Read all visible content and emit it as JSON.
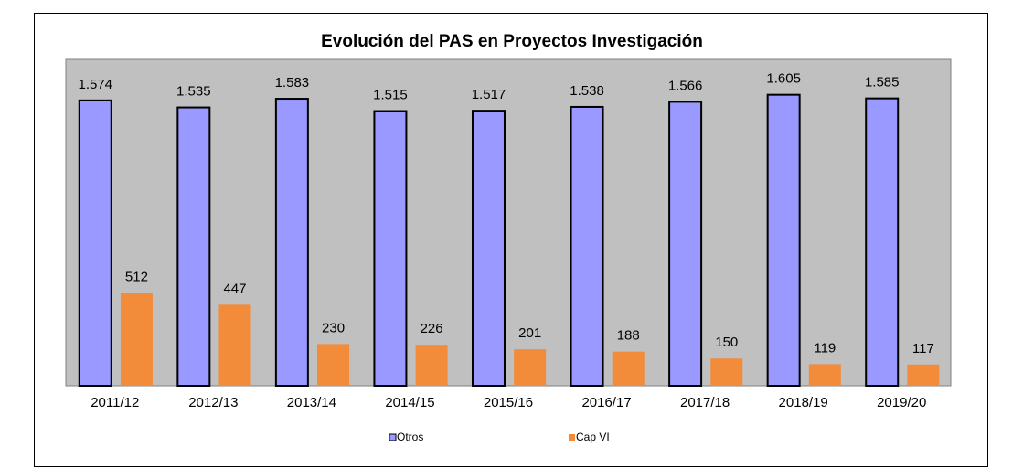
{
  "chart_data": {
    "type": "bar",
    "title": "Evolución del PAS en Proyectos Investigación",
    "categories": [
      "2011/12",
      "2012/13",
      "2013/14",
      "2014/15",
      "2015/16",
      "2016/17",
      "2017/18",
      "2018/19",
      "2019/20"
    ],
    "series": [
      {
        "name": "Otros",
        "color": "#9999ff",
        "values": [
          1574,
          1535,
          1583,
          1515,
          1517,
          1538,
          1566,
          1605,
          1585
        ],
        "value_labels": [
          "1.574",
          "1.535",
          "1.583",
          "1.515",
          "1.517",
          "1.538",
          "1.566",
          "1.605",
          "1.585"
        ]
      },
      {
        "name": "Cap VI",
        "color": "#f28b3a",
        "values": [
          512,
          447,
          230,
          226,
          201,
          188,
          150,
          119,
          117
        ]
      }
    ],
    "ylim": [
      0,
      1800
    ],
    "legend": "bottom"
  }
}
